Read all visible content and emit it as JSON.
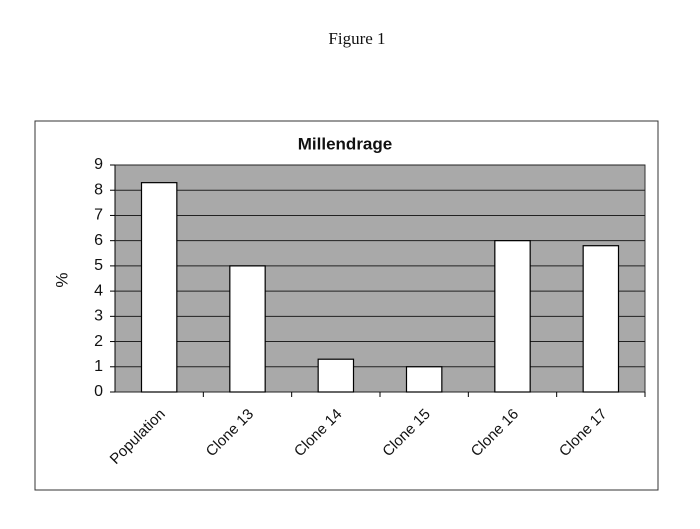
{
  "figure_label": "Figure 1",
  "chart_data": {
    "type": "bar",
    "title": "Millendrage",
    "ylabel": "%",
    "categories": [
      "Population",
      "Clone 13",
      "Clone 14",
      "Clone 15",
      "Clone 16",
      "Clone 17"
    ],
    "values": [
      8.3,
      5.0,
      1.3,
      1.0,
      6.0,
      5.8
    ],
    "color": "#ffffff",
    "ylim": [
      0,
      9
    ],
    "yticks": [
      0,
      1,
      2,
      3,
      4,
      5,
      6,
      7,
      8,
      9
    ],
    "grid": true
  }
}
